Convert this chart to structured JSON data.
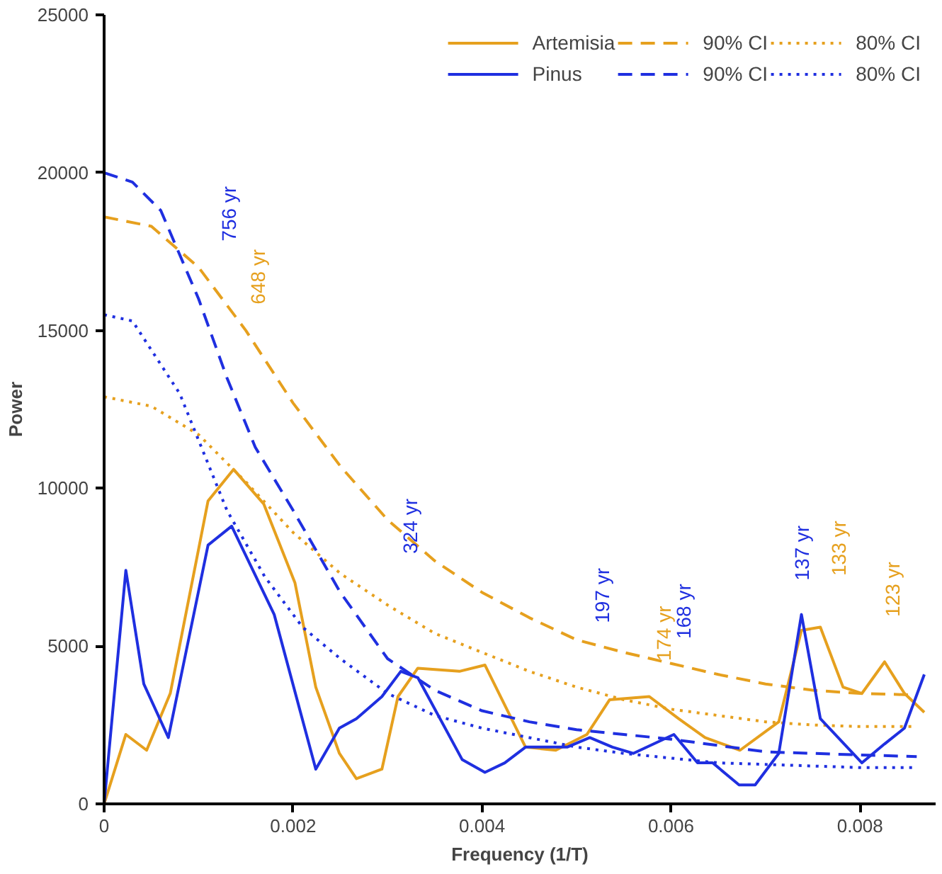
{
  "chart_data": {
    "type": "line",
    "xlabel": "Frequency (1/T)",
    "ylabel": "Power",
    "xlim": [
      0,
      0.0088
    ],
    "ylim": [
      0,
      25000
    ],
    "xticks": [
      0,
      0.002,
      0.004,
      0.006,
      0.008
    ],
    "yticks": [
      0,
      5000,
      10000,
      15000,
      20000,
      25000
    ],
    "grid": false,
    "legend": "top right",
    "marker": "none",
    "series": [
      {
        "name": "Artemisia",
        "color": "#e6a01e",
        "line_style": "solid",
        "x": [
          0,
          0.00023,
          0.00045,
          0.0007,
          0.0011,
          0.00137,
          0.00169,
          0.00202,
          0.00224,
          0.00249,
          0.00267,
          0.00294,
          0.00311,
          0.00332,
          0.00376,
          0.00403,
          0.00446,
          0.00478,
          0.00511,
          0.00535,
          0.00577,
          0.00608,
          0.00636,
          0.00673,
          0.00714,
          0.00738,
          0.00758,
          0.00782,
          0.00802,
          0.00826,
          0.00847,
          0.00868
        ],
        "values": [
          0,
          2200,
          1700,
          3500,
          9600,
          10600,
          9500,
          7000,
          3700,
          1600,
          800,
          1100,
          3400,
          4300,
          4200,
          4400,
          1800,
          1700,
          2200,
          3300,
          3400,
          2700,
          2100,
          1700,
          2600,
          5500,
          5600,
          3700,
          3500,
          4500,
          3500,
          2900
        ]
      },
      {
        "name": "90% CI",
        "color": "#e6a01e",
        "line_style": "dashed",
        "x": [
          0,
          0.0005,
          0.001,
          0.0015,
          0.002,
          0.0025,
          0.003,
          0.0035,
          0.004,
          0.0045,
          0.005,
          0.0055,
          0.006,
          0.0065,
          0.007,
          0.0075,
          0.008,
          0.0086
        ],
        "values": [
          18600,
          18300,
          17000,
          15000,
          12700,
          10700,
          9000,
          7700,
          6700,
          5900,
          5200,
          4800,
          4450,
          4100,
          3800,
          3600,
          3500,
          3450
        ]
      },
      {
        "name": "80% CI",
        "color": "#e6a01e",
        "line_style": "dotted",
        "x": [
          0,
          0.0005,
          0.001,
          0.0015,
          0.002,
          0.0025,
          0.003,
          0.0035,
          0.004,
          0.0045,
          0.005,
          0.0055,
          0.006,
          0.0065,
          0.007,
          0.0075,
          0.008,
          0.0086
        ],
        "values": [
          12900,
          12600,
          11700,
          10200,
          8600,
          7300,
          6300,
          5400,
          4800,
          4200,
          3700,
          3300,
          3000,
          2800,
          2600,
          2500,
          2450,
          2450
        ]
      },
      {
        "name": "Pinus",
        "color": "#1f2fe0",
        "line_style": "solid",
        "x": [
          0,
          0.00023,
          0.00042,
          0.00068,
          0.0011,
          0.00135,
          0.0018,
          0.00224,
          0.00249,
          0.00267,
          0.00294,
          0.00314,
          0.00332,
          0.00379,
          0.00403,
          0.00424,
          0.00446,
          0.0049,
          0.00514,
          0.00538,
          0.0056,
          0.00603,
          0.00628,
          0.00644,
          0.00672,
          0.00689,
          0.00714,
          0.00738,
          0.00758,
          0.00802,
          0.00826,
          0.00847,
          0.00868
        ],
        "values": [
          0,
          7400,
          3800,
          2100,
          8200,
          8800,
          6000,
          1100,
          2400,
          2700,
          3400,
          4200,
          4000,
          1400,
          1000,
          1300,
          1800,
          1800,
          2100,
          1800,
          1600,
          2200,
          1300,
          1300,
          600,
          600,
          1600,
          6000,
          2700,
          1300,
          1900,
          2400,
          4100
        ]
      },
      {
        "name": "90% CI",
        "color": "#1f2fe0",
        "line_style": "dashed",
        "x": [
          0,
          0.0003,
          0.0006,
          0.001,
          0.0013,
          0.0016,
          0.002,
          0.0025,
          0.003,
          0.0035,
          0.004,
          0.0045,
          0.005,
          0.0055,
          0.006,
          0.0065,
          0.007,
          0.0075,
          0.008,
          0.0086
        ],
        "values": [
          20000,
          19700,
          18800,
          16000,
          13500,
          11300,
          9300,
          6700,
          4600,
          3600,
          2950,
          2600,
          2350,
          2200,
          2050,
          1850,
          1650,
          1600,
          1550,
          1500
        ]
      },
      {
        "name": "80% CI",
        "color": "#1f2fe0",
        "line_style": "dotted",
        "x": [
          0,
          0.0003,
          0.0008,
          0.0013,
          0.0017,
          0.0021,
          0.0025,
          0.003,
          0.0035,
          0.004,
          0.0045,
          0.005,
          0.0055,
          0.006,
          0.0065,
          0.007,
          0.0075,
          0.008,
          0.0086
        ],
        "values": [
          15500,
          15300,
          13000,
          9300,
          7200,
          5600,
          4600,
          3500,
          2800,
          2400,
          2100,
          1800,
          1600,
          1450,
          1300,
          1250,
          1200,
          1150,
          1150
        ]
      }
    ],
    "annotations": [
      "756 yr",
      "648 yr",
      "324 yr",
      "197 yr",
      "174 yr",
      "168 yr",
      "137 yr",
      "133 yr",
      "123 yr"
    ]
  }
}
